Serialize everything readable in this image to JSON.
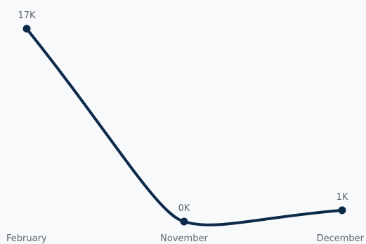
{
  "chart_data": {
    "type": "line",
    "categories": [
      "February",
      "November",
      "December"
    ],
    "series": [
      {
        "values": [
          17000,
          0,
          1000
        ],
        "labels": [
          "17K",
          "0K",
          "1K"
        ]
      }
    ],
    "ylim": [
      0,
      17000
    ],
    "grid": false,
    "line_color": "#0b2a4a",
    "background_color": "#f8f9fb",
    "label_color": "#5f6470"
  }
}
